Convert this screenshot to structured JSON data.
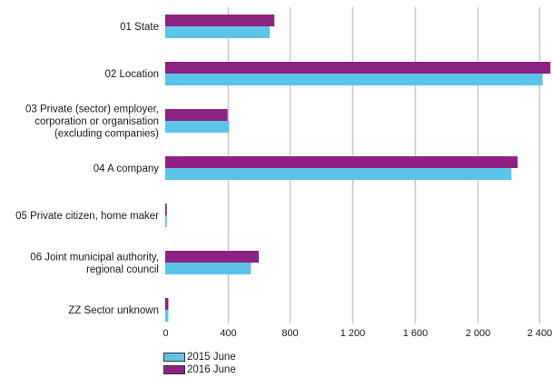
{
  "chart_data": {
    "type": "bar",
    "orientation": "horizontal",
    "categories": [
      [
        "01 State"
      ],
      [
        "02 Location"
      ],
      [
        "03 Private (sector) employer,",
        "corporation or organisation",
        "(excluding companies)"
      ],
      [
        "04 A company"
      ],
      [
        "05 Private citizen, home maker"
      ],
      [
        "06 Joint municipal authority,",
        "regional council"
      ],
      [
        "ZZ Sector unknown"
      ]
    ],
    "series": [
      {
        "name": "2016 June",
        "color": "#8e2282",
        "values": [
          700,
          2470,
          400,
          2260,
          10,
          600,
          20
        ]
      },
      {
        "name": "2015 June",
        "color": "#5bc4e8",
        "values": [
          670,
          2420,
          410,
          2220,
          10,
          550,
          20
        ]
      }
    ],
    "xlim": [
      0,
      2480
    ],
    "xticks": [
      0,
      400,
      800,
      1200,
      1600,
      2000,
      2400
    ],
    "xtick_labels": [
      "0",
      "400",
      "800",
      "1 200",
      "1 600",
      "2 000",
      "2 400"
    ],
    "grid": "vertical",
    "grid_color": "#c8c8c8",
    "legend": {
      "position": "bottom-left",
      "entries": [
        {
          "name": "2015 June",
          "color": "#5bc4e8"
        },
        {
          "name": "2016 June",
          "color": "#8e2282"
        }
      ]
    }
  }
}
